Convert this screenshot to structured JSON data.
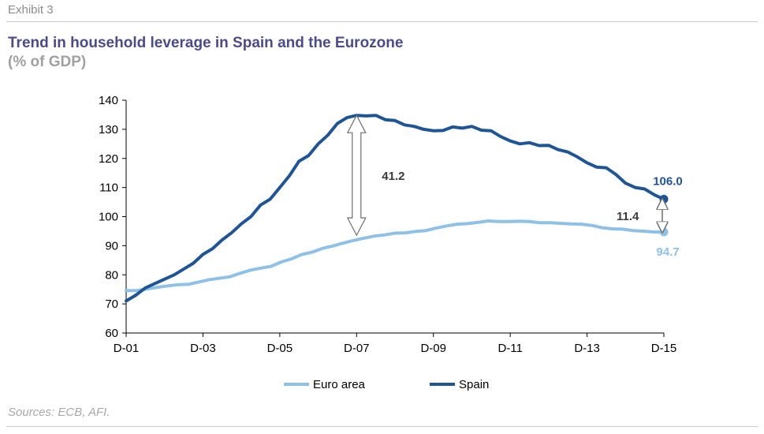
{
  "header": {
    "exhibit": "Exhibit 3",
    "title": "Trend in household leverage in Spain and the Eurozone",
    "subtitle": "(% of GDP)"
  },
  "footer": {
    "source": "Sources: ECB, AFI."
  },
  "colors": {
    "spain": "#1f5496",
    "euro": "#8fc1e6",
    "title": "#4b4a8b"
  },
  "chart_data": {
    "type": "line",
    "title": "Trend in household leverage in Spain and the Eurozone",
    "subtitle": "(% of GDP)",
    "xlabel": "",
    "ylabel": "",
    "x_start": "D-01",
    "x_end": "D-15",
    "x_ticks": [
      "D-01",
      "D-03",
      "D-05",
      "D-07",
      "D-09",
      "D-11",
      "D-13",
      "D-15"
    ],
    "ylim": [
      60,
      140
    ],
    "y_ticks": [
      60,
      70,
      80,
      90,
      100,
      110,
      120,
      130,
      140
    ],
    "grid": false,
    "legend_position": "bottom",
    "series": [
      {
        "name": "Euro area",
        "color": "#8fc1e6",
        "values": [
          74.6,
          74.6,
          75.1,
          75.7,
          76.2,
          76.6,
          76.7,
          77.5,
          78.3,
          78.8,
          79.3,
          80.5,
          81.6,
          82.3,
          82.9,
          84.4,
          85.5,
          87.0,
          87.8,
          89.1,
          89.9,
          90.9,
          91.8,
          92.6,
          93.3,
          93.7,
          94.3,
          94.4,
          94.9,
          95.2,
          96.1,
          96.8,
          97.4,
          97.6,
          98.0,
          98.5,
          98.3,
          98.3,
          98.4,
          98.3,
          97.9,
          97.9,
          97.7,
          97.5,
          97.4,
          97.0,
          96.2,
          95.8,
          95.7,
          95.2,
          95.0,
          94.7,
          94.7
        ]
      },
      {
        "name": "Spain",
        "color": "#1f5496",
        "values": [
          71.0,
          73.0,
          75.5,
          77.0,
          78.5,
          80.0,
          82.0,
          84.0,
          87.0,
          89.0,
          92.0,
          94.5,
          97.5,
          100.0,
          104.0,
          106.0,
          110.0,
          114.0,
          119.0,
          121.0,
          125.0,
          128.0,
          132.0,
          134.0,
          134.8,
          134.6,
          134.8,
          133.3,
          133.0,
          131.5,
          131.0,
          130.0,
          129.5,
          129.6,
          130.8,
          130.4,
          131.0,
          129.7,
          129.5,
          127.5,
          126.0,
          125.0,
          125.4,
          124.4,
          124.5,
          123.0,
          122.2,
          120.5,
          118.5,
          117.0,
          116.8,
          114.5,
          111.5,
          110.0,
          109.5,
          107.5,
          106.0
        ]
      }
    ],
    "annotations": [
      {
        "label": "41.2",
        "at": "D-07",
        "from": 93.6,
        "to": 134.8
      },
      {
        "label": "11.4",
        "at": "D-15",
        "from": 94.7,
        "to": 106.0
      }
    ],
    "end_labels": [
      {
        "series": "Spain",
        "label": "106.0",
        "value": 106.0
      },
      {
        "series": "Euro area",
        "label": "94.7",
        "value": 94.7
      }
    ]
  }
}
